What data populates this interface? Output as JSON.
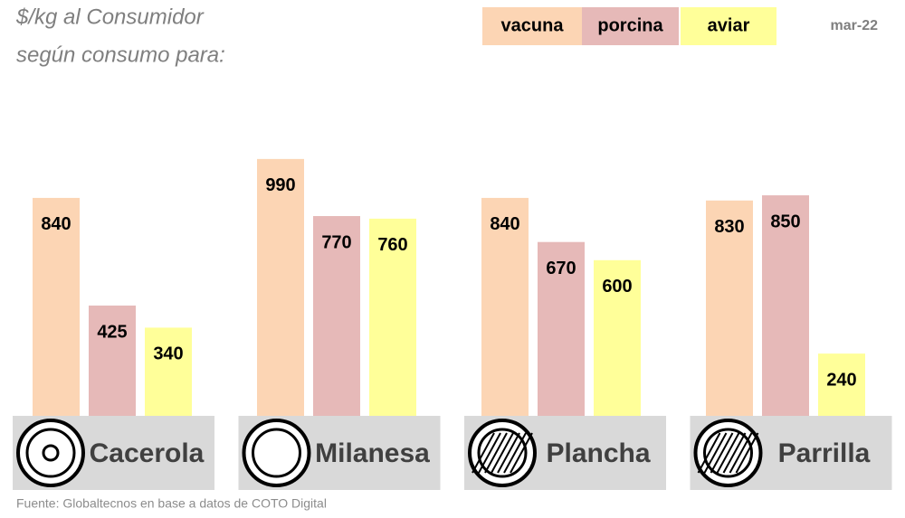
{
  "chart_data": {
    "type": "bar",
    "title": "$/kg al Consumidor",
    "subtitle": "según consumo para:",
    "date": "mar-22",
    "source": "Fuente: Globaltecnos en base a datos de COTO Digital",
    "categories": [
      "Cacerola",
      "Milanesa",
      "Plancha",
      "Parrilla"
    ],
    "series": [
      {
        "name": "vacuna",
        "color": "#fcd5b4",
        "values": [
          840,
          990,
          840,
          830
        ]
      },
      {
        "name": "porcina",
        "color": "#e6b9b8",
        "values": [
          425,
          770,
          670,
          850
        ]
      },
      {
        "name": "aviar",
        "color": "#ffff99",
        "values": [
          340,
          760,
          600,
          240
        ]
      }
    ],
    "ylim": [
      0,
      1000
    ]
  }
}
